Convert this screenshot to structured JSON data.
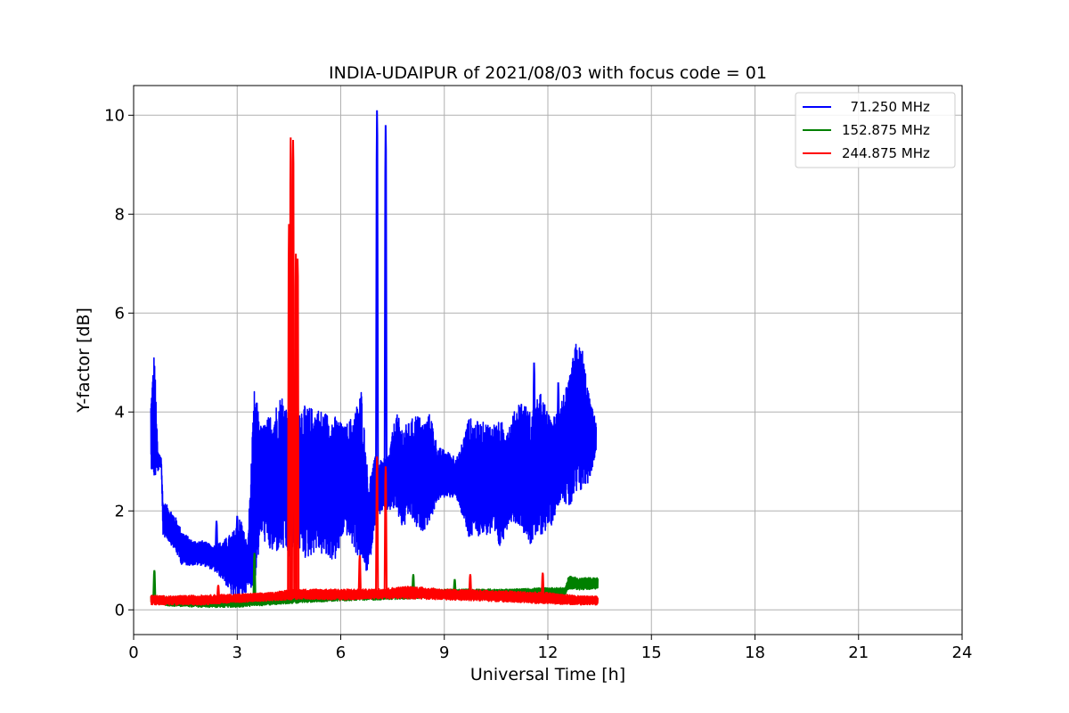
{
  "chart_data": {
    "type": "line",
    "title": "INDIA-UDAIPUR of 2021/08/03 with focus code = 01",
    "xlabel": "Universal Time [h]",
    "ylabel": "Y-factor [dB]",
    "xlim": [
      0,
      24
    ],
    "ylim": [
      -0.5,
      10.6
    ],
    "xticks": [
      0,
      3,
      6,
      9,
      12,
      15,
      18,
      21,
      24
    ],
    "yticks": [
      0,
      2,
      4,
      6,
      8,
      10
    ],
    "grid": true,
    "legend": "top-right",
    "series": [
      {
        "name": "  71.250 MHz",
        "color": "#0000ff",
        "band": [
          [
            0.5,
            2.9,
            4.2
          ],
          [
            0.6,
            2.6,
            5.3
          ],
          [
            0.7,
            2.8,
            3.2
          ],
          [
            0.8,
            2.9,
            3.1
          ],
          [
            0.85,
            1.5,
            2.2
          ],
          [
            1.0,
            1.4,
            2.1
          ],
          [
            1.2,
            1.2,
            1.9
          ],
          [
            1.4,
            0.9,
            1.6
          ],
          [
            1.7,
            0.9,
            1.4
          ],
          [
            2.0,
            0.9,
            1.4
          ],
          [
            2.3,
            0.8,
            1.3
          ],
          [
            2.6,
            0.6,
            1.4
          ],
          [
            2.9,
            0.2,
            1.6
          ],
          [
            3.1,
            0.2,
            1.9
          ],
          [
            3.3,
            0.4,
            1.3
          ],
          [
            3.5,
            0.5,
            4.5
          ],
          [
            3.7,
            1.5,
            3.7
          ],
          [
            4.0,
            1.1,
            4.0
          ],
          [
            4.3,
            1.2,
            4.4
          ],
          [
            4.5,
            1.0,
            4.0
          ],
          [
            4.8,
            1.2,
            4.2
          ],
          [
            5.0,
            1.0,
            4.1
          ],
          [
            5.3,
            1.2,
            4.1
          ],
          [
            5.6,
            1.0,
            4.0
          ],
          [
            5.9,
            1.0,
            3.9
          ],
          [
            6.1,
            1.6,
            3.7
          ],
          [
            6.4,
            1.2,
            4.0
          ],
          [
            6.6,
            0.9,
            4.5
          ],
          [
            6.8,
            0.7,
            2.6
          ],
          [
            7.0,
            1.8,
            3.1
          ],
          [
            7.2,
            2.0,
            3.0
          ],
          [
            7.4,
            2.0,
            3.2
          ],
          [
            7.6,
            2.0,
            4.0
          ],
          [
            7.8,
            1.6,
            3.7
          ],
          [
            8.0,
            1.9,
            3.8
          ],
          [
            8.2,
            1.6,
            4.0
          ],
          [
            8.4,
            1.6,
            3.8
          ],
          [
            8.6,
            1.8,
            4.0
          ],
          [
            8.8,
            2.2,
            3.3
          ],
          [
            9.1,
            2.3,
            3.2
          ],
          [
            9.4,
            2.2,
            3.1
          ],
          [
            9.7,
            1.4,
            3.9
          ],
          [
            10.0,
            1.5,
            3.8
          ],
          [
            10.3,
            1.5,
            3.8
          ],
          [
            10.6,
            1.2,
            3.8
          ],
          [
            10.9,
            1.8,
            3.8
          ],
          [
            11.2,
            1.7,
            4.3
          ],
          [
            11.5,
            1.3,
            4.0
          ],
          [
            11.8,
            1.5,
            4.4
          ],
          [
            12.1,
            1.7,
            3.8
          ],
          [
            12.4,
            2.3,
            4.3
          ],
          [
            12.6,
            2.0,
            4.6
          ],
          [
            12.8,
            2.2,
            5.4
          ],
          [
            13.0,
            2.4,
            5.3
          ],
          [
            13.2,
            2.6,
            4.3
          ],
          [
            13.4,
            3.2,
            3.8
          ]
        ],
        "spikes": [
          [
            7.05,
            10.1
          ],
          [
            7.3,
            9.8
          ],
          [
            2.4,
            1.8
          ],
          [
            3.0,
            1.9
          ],
          [
            11.6,
            5.0
          ],
          [
            12.3,
            4.6
          ]
        ]
      },
      {
        "name": "152.875 MHz",
        "color": "#008000",
        "band": [
          [
            0.5,
            0.15,
            0.3
          ],
          [
            1.0,
            0.08,
            0.25
          ],
          [
            2.0,
            0.05,
            0.22
          ],
          [
            3.0,
            0.05,
            0.25
          ],
          [
            4.0,
            0.1,
            0.3
          ],
          [
            5.0,
            0.15,
            0.32
          ],
          [
            6.0,
            0.18,
            0.35
          ],
          [
            7.0,
            0.2,
            0.38
          ],
          [
            8.0,
            0.22,
            0.42
          ],
          [
            9.0,
            0.25,
            0.42
          ],
          [
            10.0,
            0.25,
            0.42
          ],
          [
            11.0,
            0.27,
            0.42
          ],
          [
            12.0,
            0.28,
            0.45
          ],
          [
            12.5,
            0.3,
            0.45
          ],
          [
            12.6,
            0.42,
            0.68
          ],
          [
            13.0,
            0.4,
            0.65
          ],
          [
            13.45,
            0.42,
            0.65
          ]
        ],
        "spikes": [
          [
            0.6,
            0.8
          ],
          [
            3.5,
            1.15
          ],
          [
            8.1,
            0.72
          ],
          [
            9.3,
            0.62
          ]
        ]
      },
      {
        "name": "244.875 MHz",
        "color": "#ff0000",
        "band": [
          [
            0.5,
            0.1,
            0.3
          ],
          [
            1.0,
            0.1,
            0.28
          ],
          [
            2.0,
            0.1,
            0.3
          ],
          [
            3.0,
            0.15,
            0.32
          ],
          [
            4.0,
            0.18,
            0.35
          ],
          [
            4.4,
            0.2,
            0.4
          ],
          [
            5.0,
            0.22,
            0.42
          ],
          [
            6.0,
            0.2,
            0.42
          ],
          [
            7.0,
            0.22,
            0.42
          ],
          [
            8.0,
            0.22,
            0.48
          ],
          [
            9.0,
            0.2,
            0.42
          ],
          [
            10.0,
            0.18,
            0.4
          ],
          [
            11.0,
            0.15,
            0.38
          ],
          [
            12.0,
            0.12,
            0.35
          ],
          [
            13.0,
            0.1,
            0.28
          ],
          [
            13.45,
            0.1,
            0.28
          ]
        ],
        "spikes": [
          [
            4.5,
            7.8
          ],
          [
            4.55,
            9.55
          ],
          [
            4.62,
            9.5
          ],
          [
            4.7,
            7.2
          ],
          [
            4.75,
            7.1
          ],
          [
            6.55,
            1.1
          ],
          [
            7.05,
            3.1
          ],
          [
            7.3,
            2.9
          ],
          [
            9.75,
            0.72
          ],
          [
            11.85,
            0.75
          ],
          [
            2.45,
            0.5
          ]
        ]
      }
    ]
  }
}
